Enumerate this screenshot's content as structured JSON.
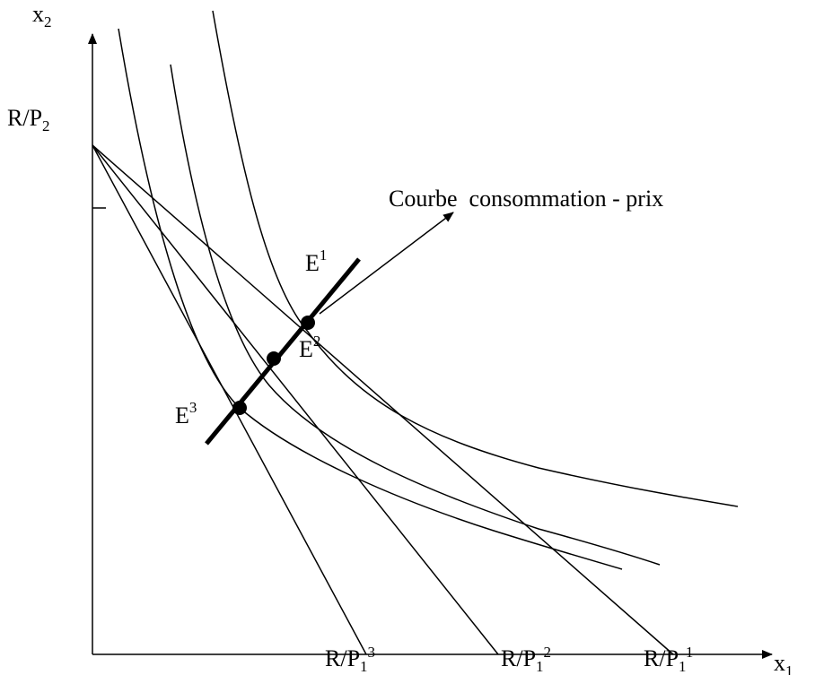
{
  "axes": {
    "y_label": {
      "base": "x",
      "sub": "2"
    },
    "x_label": {
      "base": "x",
      "sub": "1"
    }
  },
  "intercept_y": {
    "base": "R/P",
    "sub": "2"
  },
  "intercepts_x": [
    {
      "base": "R/P",
      "sub": "1",
      "sup": "3"
    },
    {
      "base": "R/P",
      "sub": "1",
      "sup": "2"
    },
    {
      "base": "R/P",
      "sub": "1",
      "sup": "1"
    }
  ],
  "points": [
    {
      "base": "E",
      "sup": "1"
    },
    {
      "base": "E",
      "sup": "2"
    },
    {
      "base": "E",
      "sup": "3"
    }
  ],
  "annotation": "Courbe  consommation - prix"
}
